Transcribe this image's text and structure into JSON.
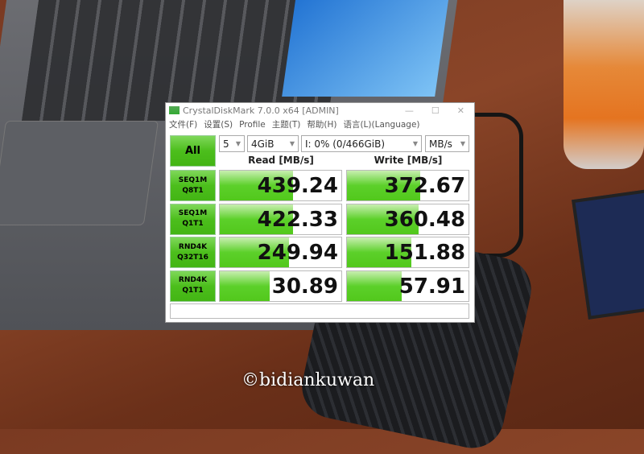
{
  "window": {
    "title": "CrystalDiskMark 7.0.0 x64 [ADMIN]",
    "minimize": "—",
    "maximize": "☐",
    "close": "✕"
  },
  "menu": [
    "文件(F)",
    "设置(S)",
    "Profile",
    "主题(T)",
    "帮助(H)",
    "语言(L)(Language)"
  ],
  "controls": {
    "all_button": "All",
    "count": "5",
    "size": "4GiB",
    "drive": "I: 0% (0/466GiB)",
    "unit": "MB/s"
  },
  "headers": {
    "read": "Read [MB/s]",
    "write": "Write [MB/s]"
  },
  "rows": [
    {
      "line1": "SEQ1M",
      "line2": "Q8T1",
      "read": "439.24",
      "write": "372.67",
      "read_fill": 0.6,
      "write_fill": 0.6
    },
    {
      "line1": "SEQ1M",
      "line2": "Q1T1",
      "read": "422.33",
      "write": "360.48",
      "read_fill": 0.6,
      "write_fill": 0.59
    },
    {
      "line1": "RND4K",
      "line2": "Q32T16",
      "read": "249.94",
      "write": "151.88",
      "read_fill": 0.57,
      "write_fill": 0.53
    },
    {
      "line1": "RND4K",
      "line2": "Q1T1",
      "read": "30.89",
      "write": "57.91",
      "read_fill": 0.41,
      "write_fill": 0.45
    }
  ],
  "comment": "",
  "watermark": "©bidiankuwan",
  "colors": {
    "accent_green": "#4cbe1c"
  }
}
